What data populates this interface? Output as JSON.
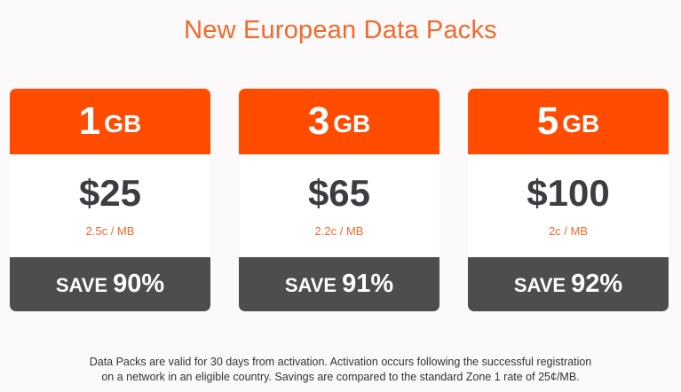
{
  "page": {
    "title": "New European Data Packs"
  },
  "colors": {
    "accent": "#ff4c00",
    "footer_bar": "#4d4d50",
    "price_text": "#3c3d42"
  },
  "packs": [
    {
      "size": "1",
      "unit": "GB",
      "price": "$25",
      "rate": "2.5c / MB",
      "save_label": "SAVE",
      "save_percent": "90%"
    },
    {
      "size": "3",
      "unit": "GB",
      "price": "$65",
      "rate": "2.2c / MB",
      "save_label": "SAVE",
      "save_percent": "91%"
    },
    {
      "size": "5",
      "unit": "GB",
      "price": "$100",
      "rate": "2c / MB",
      "save_label": "SAVE",
      "save_percent": "92%"
    }
  ],
  "footnote": {
    "line1": "Data Packs are valid for 30 days from activation. Activation occurs following the successful registration",
    "line2": "on a network in an eligible country. Savings are compared to the standard Zone 1 rate of 25¢/MB."
  }
}
